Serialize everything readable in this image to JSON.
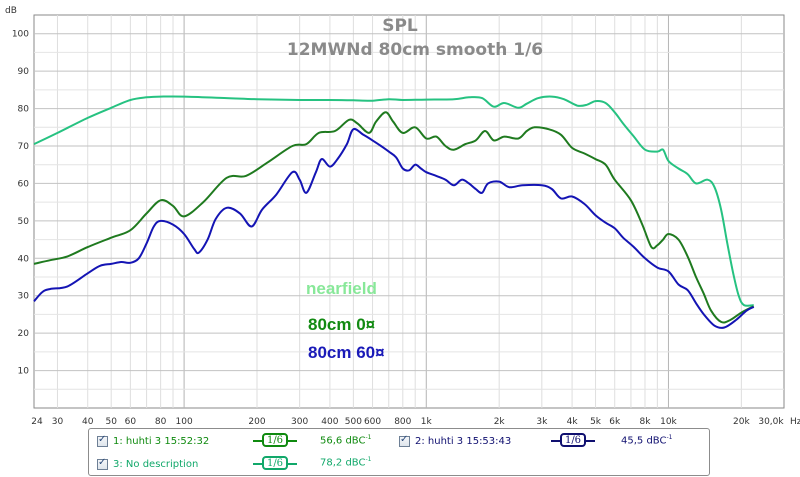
{
  "chart_data": {
    "type": "line",
    "title": "SPL",
    "subtitle": "12MWNd 80cm  smooth 1/6",
    "ylabel": "dB",
    "xlabel": "Hz",
    "x_scale": "log",
    "xlim": [
      24,
      30000
    ],
    "ylim": [
      0,
      105
    ],
    "grid": true,
    "y_ticks": [
      "10",
      "20",
      "30",
      "40",
      "50",
      "60",
      "70",
      "80",
      "90",
      "100"
    ],
    "x_ticks": [
      {
        "v": 24,
        "label": "24"
      },
      {
        "v": 30,
        "label": "30"
      },
      {
        "v": 40,
        "label": "40"
      },
      {
        "v": 50,
        "label": "50"
      },
      {
        "v": 60,
        "label": "60"
      },
      {
        "v": 80,
        "label": "80"
      },
      {
        "v": 100,
        "label": "100"
      },
      {
        "v": 200,
        "label": "200"
      },
      {
        "v": 300,
        "label": "300"
      },
      {
        "v": 400,
        "label": "400"
      },
      {
        "v": 500,
        "label": "500"
      },
      {
        "v": 600,
        "label": "600"
      },
      {
        "v": 800,
        "label": "800"
      },
      {
        "v": 1000,
        "label": "1k"
      },
      {
        "v": 2000,
        "label": "2k"
      },
      {
        "v": 3000,
        "label": "3k"
      },
      {
        "v": 4000,
        "label": "4k"
      },
      {
        "v": 5000,
        "label": "5k"
      },
      {
        "v": 6000,
        "label": "6k"
      },
      {
        "v": 8000,
        "label": "8k"
      },
      {
        "v": 10000,
        "label": "10k"
      },
      {
        "v": 20000,
        "label": "20k"
      },
      {
        "v": 30000,
        "label": "30,0k"
      }
    ],
    "series": [
      {
        "color": "#26c281",
        "points": [
          [
            24,
            70.5
          ],
          [
            30,
            73.5
          ],
          [
            40,
            77.5
          ],
          [
            50,
            80.2
          ],
          [
            60,
            82.3
          ],
          [
            70,
            83
          ],
          [
            80,
            83.2
          ],
          [
            100,
            83.2
          ],
          [
            150,
            82.8
          ],
          [
            200,
            82.5
          ],
          [
            300,
            82.3
          ],
          [
            400,
            82.3
          ],
          [
            500,
            82.2
          ],
          [
            600,
            82.1
          ],
          [
            700,
            82.5
          ],
          [
            800,
            82.3
          ],
          [
            1000,
            82.4
          ],
          [
            1300,
            82.5
          ],
          [
            1500,
            83
          ],
          [
            1700,
            82.8
          ],
          [
            1900,
            80.5
          ],
          [
            2100,
            81.5
          ],
          [
            2400,
            80.2
          ],
          [
            2600,
            81.3
          ],
          [
            2900,
            82.8
          ],
          [
            3300,
            83.2
          ],
          [
            3700,
            82.5
          ],
          [
            4200,
            80.8
          ],
          [
            4600,
            81
          ],
          [
            5000,
            82
          ],
          [
            5500,
            81.5
          ],
          [
            6000,
            79
          ],
          [
            6500,
            76
          ],
          [
            7200,
            72.5
          ],
          [
            8000,
            69
          ],
          [
            9000,
            68.5
          ],
          [
            9500,
            69
          ],
          [
            10000,
            66
          ],
          [
            11000,
            64
          ],
          [
            12000,
            62.5
          ],
          [
            13000,
            60
          ],
          [
            14500,
            61
          ],
          [
            15500,
            59
          ],
          [
            16500,
            53
          ],
          [
            17500,
            44
          ],
          [
            18500,
            36
          ],
          [
            19500,
            30
          ],
          [
            20500,
            27.5
          ],
          [
            22500,
            27.5
          ]
        ]
      },
      {
        "color": "#1f7a1f",
        "points": [
          [
            24,
            38.5
          ],
          [
            28,
            39.5
          ],
          [
            33,
            40.5
          ],
          [
            40,
            43
          ],
          [
            50,
            45.5
          ],
          [
            60,
            47.5
          ],
          [
            70,
            52
          ],
          [
            80,
            55.5
          ],
          [
            90,
            54
          ],
          [
            100,
            51.2
          ],
          [
            120,
            55
          ],
          [
            150,
            61.5
          ],
          [
            180,
            62
          ],
          [
            220,
            65.5
          ],
          [
            280,
            70
          ],
          [
            320,
            70.5
          ],
          [
            360,
            73.5
          ],
          [
            420,
            74
          ],
          [
            480,
            77
          ],
          [
            520,
            76
          ],
          [
            580,
            73.5
          ],
          [
            620,
            76.5
          ],
          [
            680,
            79
          ],
          [
            730,
            76.5
          ],
          [
            800,
            73.5
          ],
          [
            900,
            75
          ],
          [
            1000,
            72
          ],
          [
            1100,
            72.5
          ],
          [
            1200,
            70
          ],
          [
            1300,
            69
          ],
          [
            1450,
            70.5
          ],
          [
            1600,
            71.5
          ],
          [
            1750,
            74
          ],
          [
            1900,
            71.5
          ],
          [
            2100,
            72.5
          ],
          [
            2400,
            72
          ],
          [
            2600,
            74
          ],
          [
            2800,
            75
          ],
          [
            3200,
            74.5
          ],
          [
            3600,
            73
          ],
          [
            4000,
            69.5
          ],
          [
            4500,
            68
          ],
          [
            5000,
            66.5
          ],
          [
            5500,
            65
          ],
          [
            6000,
            61
          ],
          [
            7000,
            55.5
          ],
          [
            7800,
            49
          ],
          [
            8500,
            43
          ],
          [
            9000,
            43.5
          ],
          [
            9500,
            45
          ],
          [
            10000,
            46.5
          ],
          [
            11000,
            45
          ],
          [
            12000,
            40.5
          ],
          [
            13000,
            35
          ],
          [
            14000,
            30.5
          ],
          [
            15000,
            26
          ],
          [
            16500,
            23
          ],
          [
            18000,
            23.5
          ],
          [
            20000,
            25.5
          ],
          [
            22500,
            27.2
          ]
        ]
      },
      {
        "color": "#1414b4",
        "points": [
          [
            24,
            28.5
          ],
          [
            26,
            31
          ],
          [
            28,
            31.8
          ],
          [
            33,
            32.5
          ],
          [
            40,
            36
          ],
          [
            45,
            38
          ],
          [
            50,
            38.5
          ],
          [
            55,
            39
          ],
          [
            60,
            38.8
          ],
          [
            65,
            40
          ],
          [
            70,
            44
          ],
          [
            75,
            48.5
          ],
          [
            80,
            50
          ],
          [
            90,
            49
          ],
          [
            100,
            46.5
          ],
          [
            110,
            42.5
          ],
          [
            115,
            41.5
          ],
          [
            125,
            45
          ],
          [
            135,
            50.5
          ],
          [
            150,
            53.5
          ],
          [
            170,
            52
          ],
          [
            190,
            48.5
          ],
          [
            210,
            53
          ],
          [
            240,
            57
          ],
          [
            280,
            63
          ],
          [
            300,
            61
          ],
          [
            320,
            57.5
          ],
          [
            350,
            63
          ],
          [
            370,
            66.5
          ],
          [
            400,
            64.5
          ],
          [
            430,
            66.5
          ],
          [
            470,
            70.5
          ],
          [
            500,
            74.5
          ],
          [
            550,
            73
          ],
          [
            600,
            71.5
          ],
          [
            650,
            70
          ],
          [
            700,
            68.5
          ],
          [
            750,
            67
          ],
          [
            800,
            64
          ],
          [
            850,
            63.5
          ],
          [
            900,
            65
          ],
          [
            950,
            64
          ],
          [
            1000,
            63
          ],
          [
            1100,
            62
          ],
          [
            1200,
            61
          ],
          [
            1300,
            59.5
          ],
          [
            1400,
            61
          ],
          [
            1500,
            60
          ],
          [
            1600,
            58.5
          ],
          [
            1700,
            57.5
          ],
          [
            1800,
            60
          ],
          [
            2000,
            60.5
          ],
          [
            2200,
            59
          ],
          [
            2500,
            59.5
          ],
          [
            3000,
            59.5
          ],
          [
            3300,
            58.5
          ],
          [
            3600,
            56
          ],
          [
            4000,
            56.5
          ],
          [
            4500,
            54.5
          ],
          [
            5000,
            51.5
          ],
          [
            5500,
            49.5
          ],
          [
            6000,
            48
          ],
          [
            6500,
            45.5
          ],
          [
            7200,
            43
          ],
          [
            8000,
            40
          ],
          [
            9000,
            37.5
          ],
          [
            10000,
            36.5
          ],
          [
            11000,
            33
          ],
          [
            12000,
            31.5
          ],
          [
            13000,
            28
          ],
          [
            14000,
            25
          ],
          [
            15500,
            22
          ],
          [
            17000,
            21.5
          ],
          [
            19000,
            23.5
          ],
          [
            21000,
            26
          ],
          [
            22500,
            27
          ]
        ]
      }
    ],
    "annotations": [
      {
        "text": "nearfield",
        "color": "#88e899"
      },
      {
        "text": "80cm 0¤",
        "color": "#128a12"
      },
      {
        "text": "80cm 60¤",
        "color": "#1a1ab8"
      }
    ],
    "legend": [
      {
        "label": "1: huhti 3 15:52:32",
        "color": "#0f8a0f",
        "smooth": "1/6",
        "avg": "56,6 dBC",
        "avg_sup": "-1"
      },
      {
        "label": "2: huhti 3 15:53:43",
        "color": "#101070",
        "smooth": "1/6",
        "avg": "45,5 dBC",
        "avg_sup": "-1"
      },
      {
        "label": "3: No description",
        "color": "#11a86a",
        "smooth": "1/6",
        "avg": "78,2 dBC",
        "avg_sup": "-1"
      }
    ]
  }
}
